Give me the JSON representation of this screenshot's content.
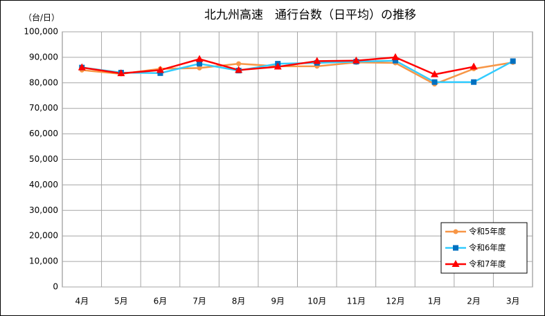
{
  "chart_data": {
    "type": "line",
    "title": "北九州高速　通行台数（日平均）の推移",
    "y_label": "（台/日）",
    "categories": [
      "4月",
      "5月",
      "6月",
      "7月",
      "8月",
      "9月",
      "10月",
      "11月",
      "12月",
      "1月",
      "2月",
      "3月"
    ],
    "series": [
      {
        "name": "令和5年度",
        "color": "#f79646",
        "marker": "circle",
        "marker_color": "#f79646",
        "values": [
          85000,
          83500,
          85500,
          85800,
          87500,
          86500,
          86500,
          88000,
          87800,
          79500,
          85500,
          88000
        ]
      },
      {
        "name": "令和6年度",
        "color": "#33ccff",
        "marker": "square",
        "marker_color": "#0070c0",
        "values": [
          86000,
          84000,
          83800,
          87500,
          84800,
          87500,
          87800,
          88300,
          88700,
          80300,
          80300,
          88500
        ]
      },
      {
        "name": "令和7年度",
        "color": "#ff0000",
        "marker": "triangle",
        "marker_color": "#ff0000",
        "values": [
          86000,
          83700,
          85000,
          89300,
          85000,
          86300,
          88500,
          88700,
          90000,
          83300,
          86300,
          null
        ]
      }
    ],
    "ylim": [
      0,
      100000
    ],
    "yticks": [
      0,
      {
        "value": 10000,
        "label": "10,000"
      },
      {
        "value": 20000,
        "label": "20,000"
      },
      {
        "value": 30000,
        "label": "30,000"
      },
      {
        "value": 40000,
        "label": "40,000"
      },
      {
        "value": 50000,
        "label": "50,000"
      },
      {
        "value": 60000,
        "label": "60,000"
      },
      {
        "value": 70000,
        "label": "70,000"
      },
      {
        "value": 80000,
        "label": "80,000"
      },
      {
        "value": 90000,
        "label": "90,000"
      },
      {
        "value": 100000,
        "label": "100,000"
      }
    ],
    "grid": true,
    "legend": "lower-right"
  }
}
